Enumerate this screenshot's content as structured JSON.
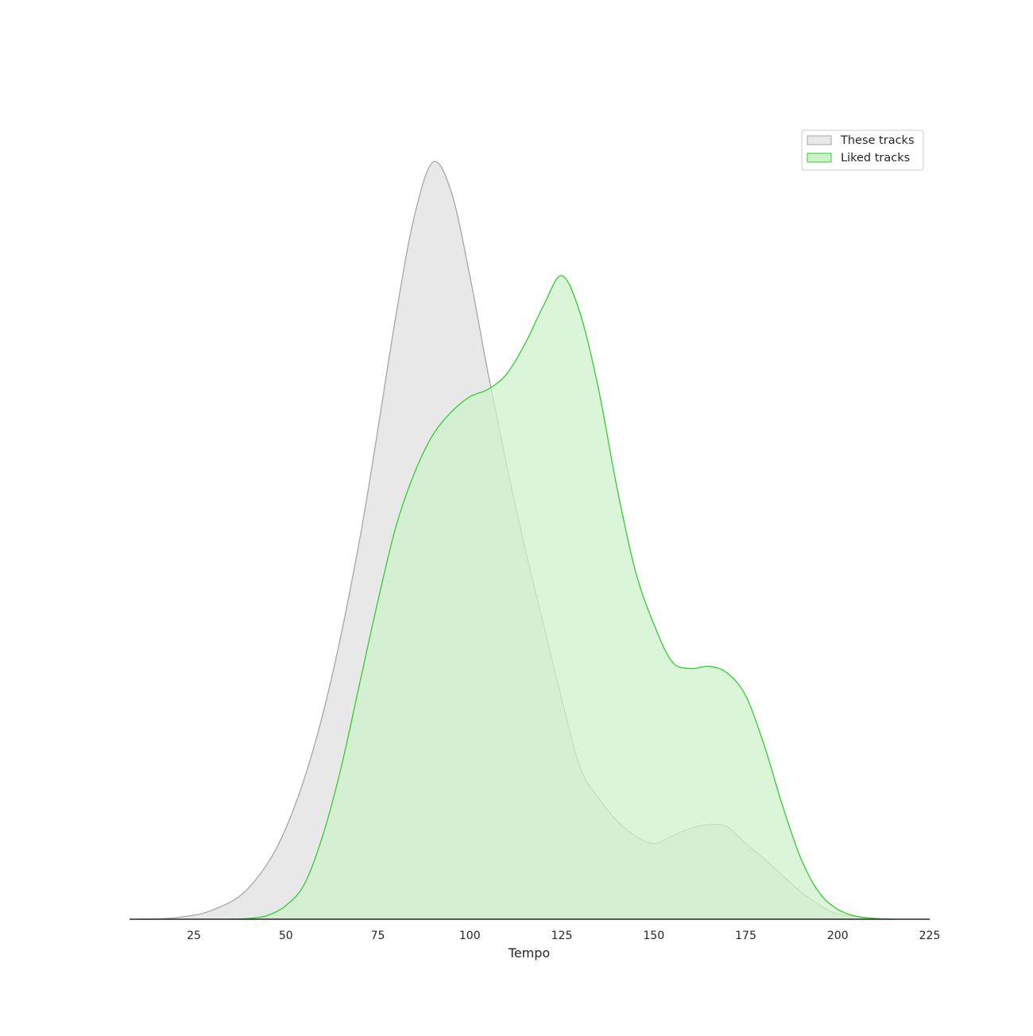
{
  "chart_data": {
    "type": "area",
    "title": "",
    "xlabel": "Tempo",
    "ylabel": "",
    "xlim": [
      7.5,
      225
    ],
    "ylim": [
      0,
      1.0
    ],
    "x_ticks": [
      "25",
      "50",
      "75",
      "100",
      "125",
      "150",
      "175",
      "200",
      "225"
    ],
    "grid": false,
    "legend_position": "top-right",
    "series": [
      {
        "name": "These tracks",
        "fill": "#e8e8e8",
        "stroke": "#a6a6a6",
        "points": [
          [
            10,
            0.0
          ],
          [
            20,
            0.002
          ],
          [
            30,
            0.012
          ],
          [
            40,
            0.042
          ],
          [
            50,
            0.12
          ],
          [
            60,
            0.27
          ],
          [
            70,
            0.5
          ],
          [
            80,
            0.8
          ],
          [
            85,
            0.93
          ],
          [
            90,
            1.0
          ],
          [
            95,
            0.96
          ],
          [
            100,
            0.85
          ],
          [
            105,
            0.72
          ],
          [
            110,
            0.6
          ],
          [
            115,
            0.49
          ],
          [
            120,
            0.39
          ],
          [
            125,
            0.29
          ],
          [
            130,
            0.2
          ],
          [
            135,
            0.16
          ],
          [
            140,
            0.13
          ],
          [
            145,
            0.11
          ],
          [
            150,
            0.1
          ],
          [
            155,
            0.11
          ],
          [
            160,
            0.12
          ],
          [
            165,
            0.125
          ],
          [
            170,
            0.122
          ],
          [
            175,
            0.1
          ],
          [
            180,
            0.08
          ],
          [
            185,
            0.058
          ],
          [
            190,
            0.036
          ],
          [
            195,
            0.019
          ],
          [
            200,
            0.007
          ],
          [
            210,
            0.001
          ],
          [
            215,
            0.0
          ]
        ]
      },
      {
        "name": "Liked tracks",
        "fill": "#cdf2cb",
        "stroke": "#33cc33",
        "points": [
          [
            35,
            0.0
          ],
          [
            40,
            0.001
          ],
          [
            45,
            0.005
          ],
          [
            50,
            0.018
          ],
          [
            55,
            0.046
          ],
          [
            60,
            0.11
          ],
          [
            65,
            0.2
          ],
          [
            70,
            0.31
          ],
          [
            75,
            0.42
          ],
          [
            80,
            0.52
          ],
          [
            85,
            0.59
          ],
          [
            90,
            0.64
          ],
          [
            95,
            0.67
          ],
          [
            100,
            0.69
          ],
          [
            105,
            0.7
          ],
          [
            110,
            0.72
          ],
          [
            115,
            0.76
          ],
          [
            120,
            0.81
          ],
          [
            125,
            0.85
          ],
          [
            130,
            0.8
          ],
          [
            135,
            0.7
          ],
          [
            140,
            0.57
          ],
          [
            145,
            0.46
          ],
          [
            150,
            0.39
          ],
          [
            155,
            0.34
          ],
          [
            160,
            0.331
          ],
          [
            165,
            0.334
          ],
          [
            170,
            0.325
          ],
          [
            175,
            0.295
          ],
          [
            180,
            0.23
          ],
          [
            185,
            0.15
          ],
          [
            190,
            0.08
          ],
          [
            195,
            0.035
          ],
          [
            200,
            0.013
          ],
          [
            205,
            0.004
          ],
          [
            210,
            0.001
          ],
          [
            215,
            0.0
          ]
        ]
      }
    ]
  }
}
